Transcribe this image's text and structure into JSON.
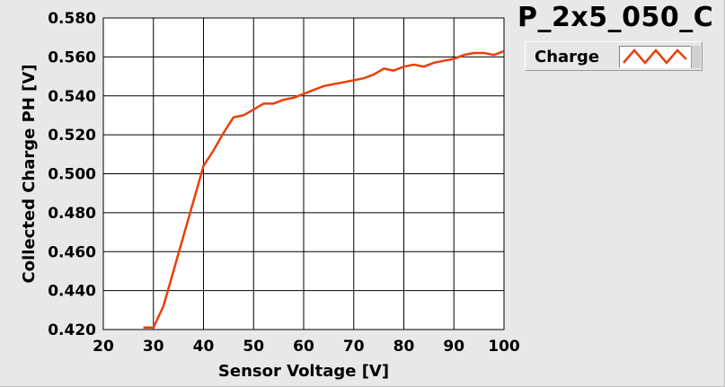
{
  "chart_data": {
    "type": "line",
    "title": "P_2x5_050_C",
    "xlabel": "Sensor Voltage [V]",
    "ylabel": "Collected Charge PH [V]",
    "xlim": [
      20,
      100
    ],
    "ylim": [
      0.42,
      0.58
    ],
    "x_ticks": [
      "20",
      "30",
      "40",
      "50",
      "60",
      "70",
      "80",
      "90",
      "100"
    ],
    "y_ticks": [
      "0.420",
      "0.440",
      "0.460",
      "0.480",
      "0.500",
      "0.520",
      "0.540",
      "0.560",
      "0.580"
    ],
    "grid": true,
    "legend_position": "top-right",
    "series": [
      {
        "name": "Charge",
        "color": "#e8400c",
        "x": [
          28,
          30,
          32,
          34,
          36,
          38,
          40,
          42,
          44,
          46,
          48,
          50,
          52,
          54,
          56,
          58,
          60,
          62,
          64,
          66,
          68,
          70,
          72,
          74,
          76,
          78,
          80,
          82,
          84,
          86,
          88,
          90,
          92,
          94,
          96,
          98,
          100
        ],
        "y": [
          0.421,
          0.421,
          0.432,
          0.45,
          0.468,
          0.486,
          0.504,
          0.512,
          0.521,
          0.529,
          0.53,
          0.533,
          0.536,
          0.536,
          0.538,
          0.539,
          0.541,
          0.543,
          0.545,
          0.546,
          0.547,
          0.548,
          0.549,
          0.551,
          0.554,
          0.553,
          0.555,
          0.556,
          0.555,
          0.557,
          0.558,
          0.559,
          0.561,
          0.562,
          0.562,
          0.561,
          0.563
        ]
      }
    ]
  },
  "legend": {
    "label": "Charge"
  }
}
